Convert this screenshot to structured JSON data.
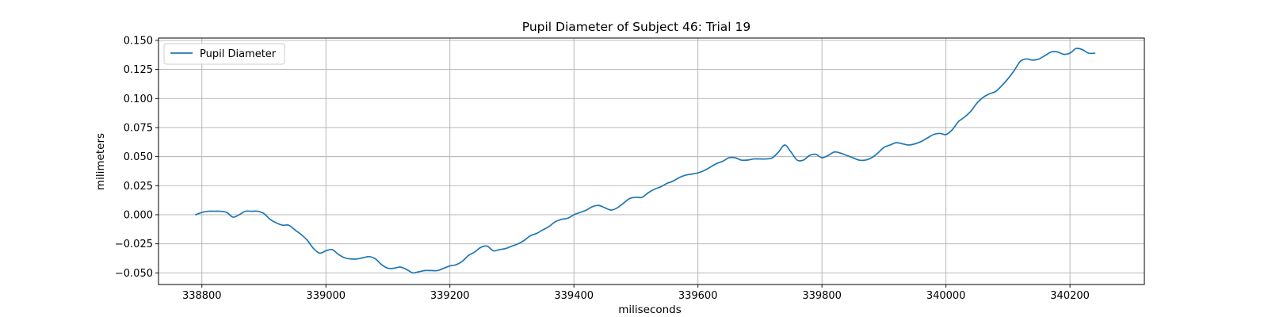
{
  "chart_data": {
    "type": "line",
    "title": "Pupil Diameter of Subject 46: Trial 19",
    "xlabel": "miliseconds",
    "ylabel": "milimeters",
    "xlim": [
      338730,
      340320
    ],
    "ylim": [
      -0.06,
      0.152
    ],
    "x_ticks": [
      338800,
      339000,
      339200,
      339400,
      339600,
      339800,
      340000,
      340200
    ],
    "y_ticks": [
      -0.05,
      -0.025,
      0.0,
      0.025,
      0.05,
      0.075,
      0.1,
      0.125,
      0.15
    ],
    "x_tick_labels": [
      "338800",
      "339000",
      "339200",
      "339400",
      "339600",
      "339800",
      "340000",
      "340200"
    ],
    "y_tick_labels": [
      "−0.050",
      "−0.025",
      "0.000",
      "0.025",
      "0.050",
      "0.075",
      "0.100",
      "0.125",
      "0.150"
    ],
    "grid": true,
    "legend_position": "top-left",
    "series": [
      {
        "name": "Pupil Diameter",
        "color": "#1f77b4",
        "x": [
          338790,
          338800,
          338810,
          338820,
          338830,
          338840,
          338850,
          338860,
          338870,
          338880,
          338890,
          338900,
          338910,
          338920,
          338930,
          338940,
          338950,
          338960,
          338970,
          338980,
          338990,
          339000,
          339010,
          339020,
          339030,
          339040,
          339050,
          339060,
          339070,
          339080,
          339090,
          339100,
          339110,
          339120,
          339130,
          339140,
          339150,
          339160,
          339170,
          339180,
          339190,
          339200,
          339210,
          339220,
          339230,
          339240,
          339250,
          339260,
          339270,
          339280,
          339290,
          339300,
          339310,
          339320,
          339330,
          339340,
          339350,
          339360,
          339370,
          339380,
          339390,
          339400,
          339410,
          339420,
          339430,
          339440,
          339450,
          339460,
          339470,
          339480,
          339490,
          339500,
          339510,
          339520,
          339530,
          339540,
          339550,
          339560,
          339570,
          339580,
          339590,
          339600,
          339610,
          339620,
          339630,
          339640,
          339650,
          339660,
          339670,
          339680,
          339690,
          339700,
          339710,
          339720,
          339730,
          339740,
          339750,
          339760,
          339770,
          339780,
          339790,
          339800,
          339810,
          339820,
          339830,
          339840,
          339850,
          339860,
          339870,
          339880,
          339890,
          339900,
          339910,
          339920,
          339930,
          339940,
          339950,
          339960,
          339970,
          339980,
          339990,
          340000,
          340010,
          340020,
          340030,
          340040,
          340050,
          340060,
          340070,
          340080,
          340090,
          340100,
          340110,
          340120,
          340130,
          340140,
          340150,
          340160,
          340170,
          340180,
          340190,
          340200,
          340210,
          340220,
          340230,
          340240
        ],
        "y": [
          0.0,
          0.002,
          0.003,
          0.003,
          0.003,
          0.002,
          -0.002,
          0.0,
          0.003,
          0.003,
          0.003,
          0.001,
          -0.004,
          -0.007,
          -0.009,
          -0.009,
          -0.013,
          -0.017,
          -0.022,
          -0.029,
          -0.033,
          -0.031,
          -0.03,
          -0.034,
          -0.037,
          -0.038,
          -0.038,
          -0.037,
          -0.036,
          -0.038,
          -0.043,
          -0.046,
          -0.046,
          -0.045,
          -0.047,
          -0.05,
          -0.049,
          -0.048,
          -0.048,
          -0.048,
          -0.046,
          -0.044,
          -0.043,
          -0.04,
          -0.035,
          -0.032,
          -0.028,
          -0.027,
          -0.031,
          -0.03,
          -0.029,
          -0.027,
          -0.025,
          -0.022,
          -0.018,
          -0.016,
          -0.013,
          -0.01,
          -0.006,
          -0.004,
          -0.003,
          0.0,
          0.002,
          0.004,
          0.007,
          0.008,
          0.006,
          0.004,
          0.006,
          0.01,
          0.014,
          0.015,
          0.015,
          0.019,
          0.022,
          0.024,
          0.027,
          0.029,
          0.032,
          0.034,
          0.035,
          0.036,
          0.038,
          0.041,
          0.044,
          0.046,
          0.049,
          0.049,
          0.047,
          0.047,
          0.048,
          0.048,
          0.048,
          0.049,
          0.054,
          0.06,
          0.054,
          0.047,
          0.047,
          0.051,
          0.052,
          0.049,
          0.051,
          0.054,
          0.053,
          0.051,
          0.049,
          0.047,
          0.047,
          0.049,
          0.053,
          0.058,
          0.06,
          0.062,
          0.061,
          0.06,
          0.061,
          0.063,
          0.066,
          0.069,
          0.07,
          0.069,
          0.073,
          0.08,
          0.084,
          0.089,
          0.096,
          0.101,
          0.104,
          0.106,
          0.111,
          0.117,
          0.124,
          0.132,
          0.134,
          0.133,
          0.134,
          0.137,
          0.14,
          0.14,
          0.138,
          0.139,
          0.143,
          0.142,
          0.139,
          0.139
        ]
      }
    ]
  }
}
